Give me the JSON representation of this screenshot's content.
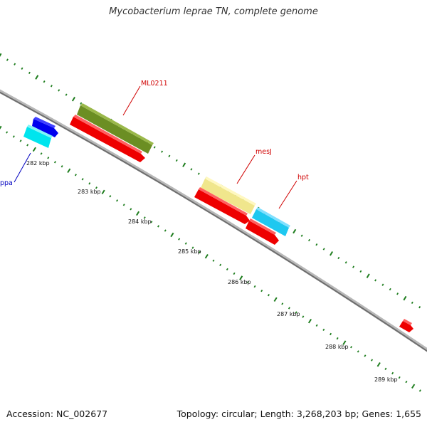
{
  "map": {
    "title": "Mycobacterium leprae TN, complete genome",
    "accession": "Accession: NC_002677",
    "summary": "Topology: circular; Length: 3,268,203 bp; Genes: 1,655",
    "colors": {
      "backbone": "#8c8c8c",
      "ticks": "#1e7d1e",
      "label_red": "#d00000",
      "label_blue": "#0000c0"
    },
    "tick_labels": [
      "282 kbp",
      "283 kbp",
      "284 kbp",
      "285 kbp",
      "286 kbp",
      "287 kbp",
      "288 kbp",
      "289 kbp"
    ],
    "gene_labels": [
      {
        "name": "ML0211",
        "color": "#d00000"
      },
      {
        "name": "mesJ",
        "color": "#d00000"
      },
      {
        "name": "hpt",
        "color": "#d00000"
      },
      {
        "name": "ppa",
        "color": "#0000c0"
      }
    ],
    "features": [
      {
        "id": "f1",
        "color": "#0000ee"
      },
      {
        "id": "f2",
        "color": "#00e5ee"
      },
      {
        "id": "f3",
        "color": "#6b8e23"
      },
      {
        "id": "f4",
        "color": "#ee0000"
      },
      {
        "id": "f5",
        "color": "#f0e68c"
      },
      {
        "id": "f6",
        "color": "#ee0000"
      },
      {
        "id": "f7",
        "color": "#1ec8f0"
      },
      {
        "id": "f8",
        "color": "#ee0000"
      },
      {
        "id": "f9",
        "color": "#ee0000"
      }
    ]
  }
}
